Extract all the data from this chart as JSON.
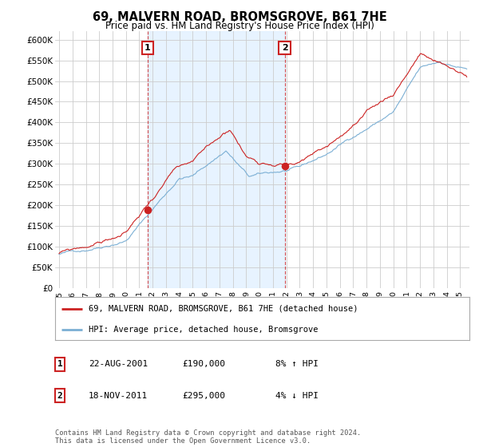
{
  "title": "69, MALVERN ROAD, BROMSGROVE, B61 7HE",
  "subtitle": "Price paid vs. HM Land Registry's House Price Index (HPI)",
  "legend_line1": "69, MALVERN ROAD, BROMSGROVE, B61 7HE (detached house)",
  "legend_line2": "HPI: Average price, detached house, Bromsgrove",
  "annotation1_label": "1",
  "annotation1_date": "22-AUG-2001",
  "annotation1_price": "£190,000",
  "annotation1_hpi": "8% ↑ HPI",
  "annotation2_label": "2",
  "annotation2_date": "18-NOV-2011",
  "annotation2_price": "£295,000",
  "annotation2_hpi": "4% ↓ HPI",
  "footnote": "Contains HM Land Registry data © Crown copyright and database right 2024.\nThis data is licensed under the Open Government Licence v3.0.",
  "house_color": "#cc2222",
  "hpi_color": "#7bafd4",
  "hpi_fill_color": "#ddeeff",
  "background_color": "#ffffff",
  "grid_color": "#cccccc",
  "ylim_max": 620000,
  "yticks": [
    0,
    50000,
    100000,
    150000,
    200000,
    250000,
    300000,
    350000,
    400000,
    450000,
    500000,
    550000,
    600000
  ],
  "ytick_labels": [
    "£0",
    "£50K",
    "£100K",
    "£150K",
    "£200K",
    "£250K",
    "£300K",
    "£350K",
    "£400K",
    "£450K",
    "£500K",
    "£550K",
    "£600K"
  ],
  "purchase1_year": 2001.63,
  "purchase1_price": 190000,
  "purchase2_year": 2011.88,
  "purchase2_price": 295000,
  "year_start": 1995,
  "year_end": 2025
}
